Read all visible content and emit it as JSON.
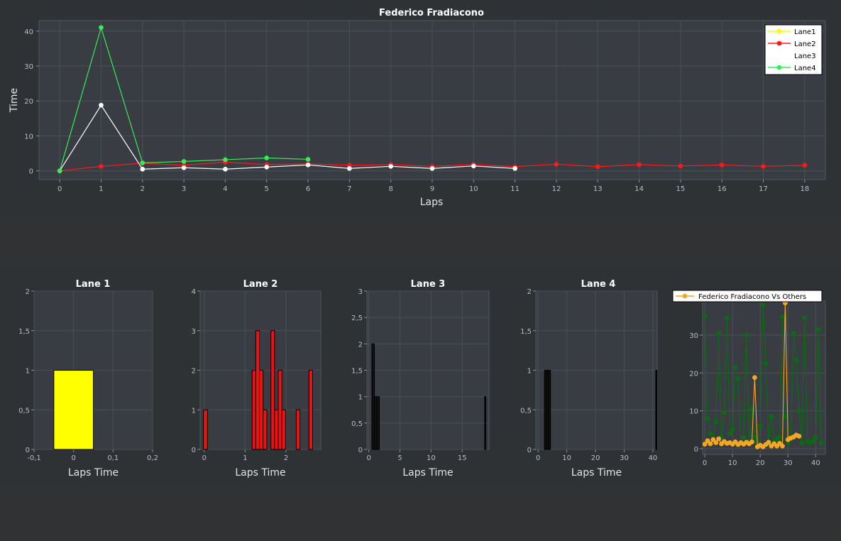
{
  "chart_data": [
    {
      "type": "line",
      "title": "Federico Fradiacono",
      "xlabel": "Laps",
      "ylabel": "Time",
      "xlim": [
        -0.5,
        18.5
      ],
      "ylim": [
        -2.5,
        43
      ],
      "xticks": [
        "0",
        "1",
        "2",
        "3",
        "4",
        "5",
        "6",
        "7",
        "8",
        "9",
        "10",
        "11",
        "12",
        "13",
        "14",
        "15",
        "16",
        "17",
        "18"
      ],
      "yticks": [
        "0",
        "10",
        "20",
        "30",
        "40"
      ],
      "grid": true,
      "legend": "top-right",
      "series": [
        {
          "name": "Lane1",
          "color": "#ffff00",
          "x": [],
          "values": []
        },
        {
          "name": "Lane2",
          "color": "#ff1a1a",
          "x": [
            0,
            1,
            2,
            3,
            4,
            5,
            6,
            7,
            8,
            9,
            10,
            11,
            12,
            13,
            14,
            15,
            16,
            17,
            18
          ],
          "values": [
            0,
            1.3,
            2.2,
            1.6,
            2.5,
            1.8,
            2.0,
            1.6,
            1.8,
            1.3,
            1.8,
            1.2,
            1.9,
            1.2,
            1.8,
            1.4,
            1.7,
            1.3,
            1.6
          ]
        },
        {
          "name": "Lane3",
          "color": "#ffffff",
          "x": [
            0,
            1,
            2,
            3,
            4,
            5,
            6,
            7,
            8,
            9,
            10,
            11
          ],
          "values": [
            0,
            18.8,
            0.5,
            0.9,
            0.5,
            1.1,
            1.7,
            0.7,
            1.3,
            0.7,
            1.4,
            0.7
          ]
        },
        {
          "name": "Lane4",
          "color": "#33ee55",
          "x": [
            0,
            1,
            2,
            3,
            4,
            5,
            6
          ],
          "values": [
            0,
            41,
            2.3,
            2.7,
            3.2,
            3.7,
            3.3
          ]
        }
      ]
    },
    {
      "type": "bar",
      "title": "Lane 1",
      "xlabel": "Laps Time",
      "color": "#ffff00",
      "xlim": [
        -0.1,
        0.2
      ],
      "ylim": [
        0,
        2
      ],
      "xticks": [
        {
          "v": -0.1,
          "l": "-0,1"
        },
        {
          "v": 0,
          "l": "0"
        },
        {
          "v": 0.1,
          "l": "0,1"
        },
        {
          "v": 0.2,
          "l": "0,2"
        }
      ],
      "yticks": [
        {
          "v": 0,
          "l": "0"
        },
        {
          "v": 0.5,
          "l": "0,5"
        },
        {
          "v": 1,
          "l": "1"
        },
        {
          "v": 1.5,
          "l": "1,5"
        },
        {
          "v": 2,
          "l": "2"
        }
      ],
      "bins": [
        {
          "x0": -0.05,
          "x1": 0.05,
          "count": 1
        }
      ]
    },
    {
      "type": "bar",
      "title": "Lane 2",
      "xlabel": "Laps Time",
      "color": "#ee1111",
      "xlim": [
        -0.1,
        2.85
      ],
      "ylim": [
        0,
        4
      ],
      "xticks": [
        {
          "v": 0,
          "l": "0"
        },
        {
          "v": 1,
          "l": "1"
        },
        {
          "v": 2,
          "l": "2"
        }
      ],
      "yticks": [
        {
          "v": 0,
          "l": "0"
        },
        {
          "v": 1,
          "l": "1"
        },
        {
          "v": 2,
          "l": "2"
        },
        {
          "v": 3,
          "l": "3"
        },
        {
          "v": 4,
          "l": "4"
        }
      ],
      "bins": [
        {
          "x0": -0.02,
          "x1": 0.08,
          "count": 1
        },
        {
          "x0": 1.17,
          "x1": 1.26,
          "count": 2
        },
        {
          "x0": 1.26,
          "x1": 1.35,
          "count": 3
        },
        {
          "x0": 1.35,
          "x1": 1.44,
          "count": 2
        },
        {
          "x0": 1.44,
          "x1": 1.53,
          "count": 1
        },
        {
          "x0": 1.63,
          "x1": 1.72,
          "count": 3
        },
        {
          "x0": 1.72,
          "x1": 1.81,
          "count": 1
        },
        {
          "x0": 1.81,
          "x1": 1.9,
          "count": 2
        },
        {
          "x0": 1.9,
          "x1": 1.99,
          "count": 1
        },
        {
          "x0": 2.25,
          "x1": 2.34,
          "count": 1
        },
        {
          "x0": 2.56,
          "x1": 2.65,
          "count": 2
        }
      ]
    },
    {
      "type": "bar",
      "title": "Lane 3",
      "xlabel": "Laps Time",
      "color": "#111111",
      "xlim": [
        -0.3,
        19.3
      ],
      "ylim": [
        0,
        3
      ],
      "xticks": [
        {
          "v": 0,
          "l": "0"
        },
        {
          "v": 5,
          "l": "5"
        },
        {
          "v": 10,
          "l": "10"
        },
        {
          "v": 15,
          "l": "15"
        }
      ],
      "yticks": [
        {
          "v": 0,
          "l": "0"
        },
        {
          "v": 0.5,
          "l": "0,5"
        },
        {
          "v": 1,
          "l": "1"
        },
        {
          "v": 1.5,
          "l": "1,5"
        },
        {
          "v": 2,
          "l": "2"
        },
        {
          "v": 2.5,
          "l": "2,5"
        },
        {
          "v": 3,
          "l": "3"
        }
      ],
      "bins": [
        {
          "x0": 0.5,
          "x1": 0.9,
          "count": 2
        },
        {
          "x0": 0.9,
          "x1": 1.3,
          "count": 1
        },
        {
          "x0": 1.3,
          "x1": 1.7,
          "count": 1
        },
        {
          "x0": 18.6,
          "x1": 18.8,
          "count": 1
        }
      ]
    },
    {
      "type": "bar",
      "title": "Lane 4",
      "xlabel": "Laps Time",
      "color": "#111111",
      "xlim": [
        -0.8,
        41.5
      ],
      "ylim": [
        0,
        2
      ],
      "xticks": [
        {
          "v": 0,
          "l": "0"
        },
        {
          "v": 10,
          "l": "10"
        },
        {
          "v": 20,
          "l": "20"
        },
        {
          "v": 30,
          "l": "30"
        },
        {
          "v": 40,
          "l": "40"
        }
      ],
      "yticks": [
        {
          "v": 0,
          "l": "0"
        },
        {
          "v": 0.5,
          "l": "0,5"
        },
        {
          "v": 1,
          "l": "1"
        },
        {
          "v": 1.5,
          "l": "1,5"
        },
        {
          "v": 2,
          "l": "2"
        }
      ],
      "bins": [
        {
          "x0": 2.2,
          "x1": 2.9,
          "count": 1
        },
        {
          "x0": 2.9,
          "x1": 3.6,
          "count": 1
        },
        {
          "x0": 3.6,
          "x1": 4.3,
          "count": 1
        },
        {
          "x0": 41.0,
          "x1": 41.4,
          "count": 1
        }
      ]
    },
    {
      "type": "line",
      "title": "",
      "xlim": [
        -0.8,
        43.5
      ],
      "ylim": [
        -1.5,
        39
      ],
      "xticks": [
        {
          "v": 0,
          "l": "0"
        },
        {
          "v": 10,
          "l": "10"
        },
        {
          "v": 20,
          "l": "20"
        },
        {
          "v": 30,
          "l": "30"
        },
        {
          "v": 40,
          "l": "40"
        }
      ],
      "yticks": [
        {
          "v": 0,
          "l": "0"
        },
        {
          "v": 10,
          "l": "10"
        },
        {
          "v": 20,
          "l": "20"
        },
        {
          "v": 30,
          "l": "30"
        }
      ],
      "legend": "top",
      "series": [
        {
          "name": "Federico Fradiacono Vs Others",
          "color": "#f5a623",
          "x": [
            0,
            1,
            2,
            3,
            4,
            5,
            6,
            7,
            8,
            9,
            10,
            11,
            12,
            13,
            14,
            15,
            16,
            17,
            18,
            19,
            20,
            21,
            22,
            23,
            24,
            25,
            26,
            27,
            28,
            29,
            30,
            31,
            32,
            33,
            34
          ],
          "values": [
            1.2,
            2.1,
            1.3,
            2.4,
            1.6,
            2.6,
            1.3,
            1.9,
            1.4,
            1.6,
            1.2,
            1.8,
            1.1,
            1.6,
            1.2,
            1.7,
            1.3,
            1.8,
            18.8,
            0.5,
            0.9,
            0.5,
            1.1,
            1.7,
            0.7,
            1.3,
            0.7,
            1.4,
            0.7,
            38.5,
            2.4,
            2.8,
            3.1,
            3.6,
            3.3
          ]
        },
        {
          "name": "",
          "color": "#0b6b12",
          "x": [
            0,
            1,
            2,
            3,
            4,
            5,
            6,
            7,
            8,
            9,
            10,
            11,
            12,
            13,
            14,
            15,
            16,
            17,
            18,
            19,
            20,
            21,
            22,
            23,
            24,
            25,
            26,
            27,
            28,
            29,
            30,
            31,
            32,
            33,
            34,
            35,
            36,
            37,
            38,
            39,
            40,
            41,
            42
          ],
          "values": [
            35,
            8,
            4,
            2,
            7,
            30.5,
            3,
            9.5,
            34.5,
            4,
            5,
            21.5,
            18.5,
            1.5,
            3,
            30,
            2,
            10.5,
            3,
            1.5,
            6,
            38,
            22.5,
            1.5,
            8.5,
            2,
            2.5,
            3,
            34.8,
            8.5,
            1.5,
            2.5,
            30.5,
            23.5,
            10,
            1.5,
            34.5,
            2,
            1.5,
            2,
            3,
            31.5,
            1.5
          ]
        }
      ]
    }
  ]
}
